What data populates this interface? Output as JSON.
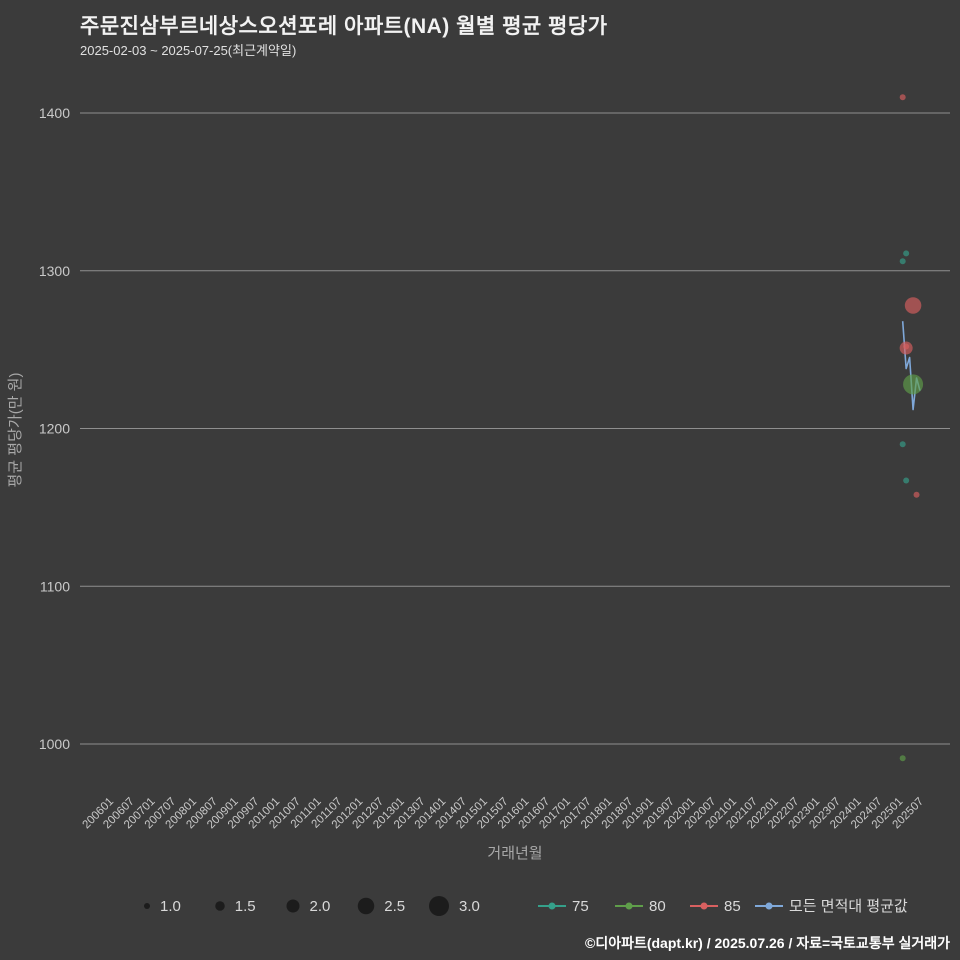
{
  "header": {
    "title": "주문진삼부르네상스오션포레 아파트(NA) 월별 평균 평당가",
    "subtitle": "2025-02-03 ~ 2025-07-25(최근계약일)"
  },
  "footer": {
    "credit": "©디아파트(dapt.kr) / 2025.07.26 / 자료=국토교통부 실거래가"
  },
  "colors": {
    "background": "#3b3b3b",
    "grid": "#8f8f8f",
    "tick_label": "#c9c9c9",
    "axis_title": "#a8a8a8",
    "legend_label": "#d9d9d9",
    "size_legend_dot": "#1c1c1c",
    "series_75": "#35a08a",
    "series_80": "#5f9e4a",
    "series_85": "#d96060",
    "avg_line": "#7fa8d9"
  },
  "chart_data": {
    "type": "scatter",
    "title": "주문진삼부르네상스오션포레 아파트(NA) 월별 평균 평당가",
    "subtitle": "2025-02-03 ~ 2025-07-25(최근계약일)",
    "xlabel": "거래년월",
    "ylabel": "평균 평당가(만 원)",
    "ylim": [
      960,
      1445
    ],
    "yticks": [
      1000,
      1100,
      1200,
      1300,
      1400
    ],
    "grid": true,
    "legend_position": "bottom",
    "xticks": [
      "200601",
      "200607",
      "200701",
      "200707",
      "200801",
      "200807",
      "200901",
      "200907",
      "201001",
      "201007",
      "201101",
      "201107",
      "201201",
      "201207",
      "201301",
      "201307",
      "201401",
      "201407",
      "201501",
      "201507",
      "201601",
      "201607",
      "201701",
      "201707",
      "201801",
      "201807",
      "201901",
      "201907",
      "202001",
      "202007",
      "202101",
      "202107",
      "202201",
      "202207",
      "202301",
      "202307",
      "202401",
      "202407",
      "202501",
      "202507"
    ],
    "size_legend": {
      "values": [
        "1.0",
        "1.5",
        "2.0",
        "2.5",
        "3.0"
      ]
    },
    "series": [
      {
        "name": "75",
        "color": "#35a08a",
        "points": [
          {
            "x": "202502",
            "y": 1306,
            "size": 1.0
          },
          {
            "x": "202503",
            "y": 1311,
            "size": 1.0
          },
          {
            "x": "202502",
            "y": 1190,
            "size": 1.0
          },
          {
            "x": "202503",
            "y": 1167,
            "size": 1.0
          }
        ]
      },
      {
        "name": "80",
        "color": "#5f9e4a",
        "points": [
          {
            "x": "202505",
            "y": 1228,
            "size": 3.0
          },
          {
            "x": "202502",
            "y": 991,
            "size": 1.0
          }
        ]
      },
      {
        "name": "85",
        "color": "#d96060",
        "points": [
          {
            "x": "202502",
            "y": 1410,
            "size": 1.0
          },
          {
            "x": "202505",
            "y": 1278,
            "size": 2.5
          },
          {
            "x": "202503",
            "y": 1251,
            "size": 2.0
          },
          {
            "x": "202503",
            "y": 1252,
            "size": 1.0
          },
          {
            "x": "202506",
            "y": 1158,
            "size": 1.0
          }
        ]
      }
    ],
    "avg_line": {
      "name": "모든 면적대 평균값",
      "color": "#7fa8d9",
      "points": [
        {
          "x": "202502",
          "y": 1268
        },
        {
          "x": "202503",
          "y": 1238
        },
        {
          "x": "202504",
          "y": 1245
        },
        {
          "x": "202505",
          "y": 1212
        },
        {
          "x": "202506",
          "y": 1232
        },
        {
          "x": "202507",
          "y": 1224
        }
      ]
    }
  }
}
